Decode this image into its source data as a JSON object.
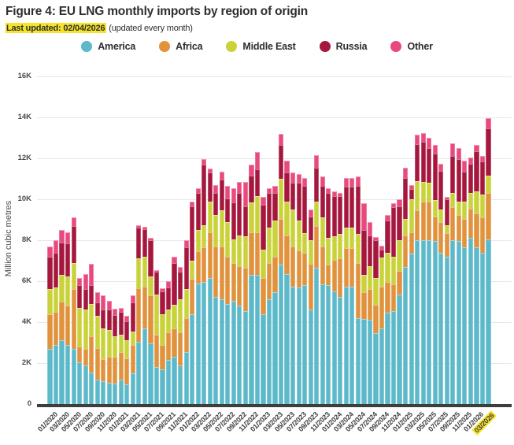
{
  "title": "Figure 4: EU LNG monthly imports by region of origin",
  "subtitle": {
    "highlight": "Last updated: 02/04/2026",
    "rest": " (updated every month)"
  },
  "colors": {
    "america": "#5db9c9",
    "africa": "#e0923c",
    "middle_east": "#c9d339",
    "russia": "#a6173d",
    "other": "#e8497f",
    "highlight_yellow": "#f7e428",
    "grid": "#e7e7e7",
    "axis": "#3d3d3d"
  },
  "legend": {
    "items": [
      {
        "label": "America",
        "color": "#5db9c9"
      },
      {
        "label": "Africa",
        "color": "#e0923c"
      },
      {
        "label": "Middle East",
        "color": "#c9d339"
      },
      {
        "label": "Russia",
        "color": "#a6173d"
      },
      {
        "label": "Other",
        "color": "#e8497f"
      }
    ]
  },
  "y_axis": {
    "title": "Million cubic metres",
    "ticks": [
      "0",
      "2K",
      "4K",
      "6K",
      "8K",
      "10K",
      "12K",
      "14K",
      "16K"
    ],
    "tick_step": 2000
  },
  "x_axis": {
    "label_every_n_months": 2,
    "last_label_highlighted": true
  },
  "chart_data": {
    "type": "bar",
    "subtype": "stacked-vertical",
    "title": "Figure 4: EU LNG monthly imports by region of origin",
    "xlabel": "",
    "ylabel": "Million cubic metres",
    "ylim": [
      0,
      16000
    ],
    "grid": true,
    "legend_position": "top-center",
    "categories": [
      "01/2020",
      "02/2020",
      "03/2020",
      "04/2020",
      "05/2020",
      "06/2020",
      "07/2020",
      "08/2020",
      "09/2020",
      "10/2020",
      "11/2020",
      "12/2020",
      "01/2021",
      "02/2021",
      "03/2021",
      "04/2021",
      "05/2021",
      "06/2021",
      "07/2021",
      "08/2021",
      "09/2021",
      "10/2021",
      "11/2021",
      "12/2021",
      "01/2022",
      "02/2022",
      "03/2022",
      "04/2022",
      "05/2022",
      "06/2022",
      "07/2022",
      "08/2022",
      "09/2022",
      "10/2022",
      "11/2022",
      "12/2022",
      "01/2023",
      "02/2023",
      "03/2023",
      "04/2023",
      "05/2023",
      "06/2023",
      "07/2023",
      "08/2023",
      "09/2023",
      "10/2023",
      "11/2023",
      "12/2023",
      "01/2024",
      "02/2024",
      "03/2024",
      "04/2024",
      "05/2024",
      "06/2024",
      "07/2024",
      "08/2024",
      "09/2024",
      "10/2024",
      "11/2024",
      "12/2024",
      "01/2025",
      "02/2025",
      "03/2025",
      "04/2025",
      "05/2025",
      "06/2025",
      "07/2025",
      "08/2025",
      "09/2025",
      "10/2025",
      "11/2025",
      "12/2025",
      "01/2026",
      "02/2026",
      "03/2026"
    ],
    "series": [
      {
        "name": "America",
        "color": "#5db9c9",
        "values": [
          2700,
          2900,
          3100,
          2900,
          2700,
          2050,
          1900,
          1550,
          1200,
          1100,
          1050,
          1000,
          1200,
          950,
          1500,
          3050,
          3700,
          2950,
          1800,
          1700,
          2150,
          2300,
          1900,
          2550,
          4400,
          5900,
          5950,
          6150,
          5250,
          5100,
          4900,
          5050,
          4800,
          4550,
          6300,
          6300,
          4400,
          5100,
          5450,
          6800,
          6350,
          5750,
          5700,
          5800,
          4600,
          6650,
          5850,
          5800,
          5500,
          5250,
          5750,
          5750,
          4200,
          4150,
          4100,
          3450,
          3700,
          4450,
          4550,
          5350,
          6700,
          7350,
          8000,
          8000,
          8000,
          7950,
          7400,
          7200,
          8000,
          7950,
          7650,
          8100,
          7650,
          7400,
          8050
        ]
      },
      {
        "name": "Africa",
        "color": "#e0923c",
        "values": [
          1700,
          1600,
          1900,
          1900,
          2900,
          750,
          800,
          1750,
          1550,
          1100,
          1250,
          1300,
          1350,
          1300,
          1400,
          2600,
          2050,
          2350,
          1600,
          1200,
          1350,
          1400,
          1600,
          1650,
          1700,
          1550,
          1700,
          2250,
          2450,
          2600,
          2300,
          1850,
          1950,
          2100,
          2100,
          2100,
          1750,
          1800,
          1750,
          2250,
          1900,
          1950,
          1800,
          1600,
          2250,
          2050,
          1850,
          1000,
          1550,
          1850,
          1850,
          1850,
          2700,
          1300,
          1500,
          1400,
          2050,
          1500,
          1300,
          1150,
          1550,
          1050,
          1450,
          1900,
          1900,
          1200,
          1500,
          1150,
          1600,
          1300,
          1400,
          1450,
          1650,
          1700,
          2250
        ]
      },
      {
        "name": "Middle East",
        "color": "#c9d339",
        "values": [
          1200,
          1200,
          1300,
          1450,
          1300,
          1900,
          1900,
          1600,
          1550,
          1500,
          1300,
          1000,
          850,
          850,
          650,
          1450,
          1450,
          950,
          1950,
          1500,
          1100,
          1150,
          1600,
          1400,
          900,
          1050,
          1100,
          1500,
          1550,
          1750,
          1700,
          1150,
          1500,
          1550,
          1450,
          1750,
          1400,
          1700,
          1750,
          1950,
          1650,
          1800,
          1450,
          950,
          1150,
          1200,
          1400,
          1300,
          1150,
          1200,
          1000,
          1000,
          1400,
          850,
          1150,
          1300,
          1400,
          1450,
          1350,
          1500,
          800,
          1600,
          1450,
          950,
          900,
          800,
          600,
          400,
          700,
          650,
          850,
          750,
          1100,
          1150,
          850
        ]
      },
      {
        "name": "Russia",
        "color": "#a6173d",
        "values": [
          1600,
          1700,
          1600,
          1600,
          1800,
          1100,
          1000,
          900,
          650,
          900,
          1000,
          1050,
          1100,
          950,
          1400,
          1500,
          1350,
          1750,
          1100,
          1100,
          1100,
          2050,
          1350,
          2050,
          2650,
          1800,
          2950,
          1400,
          1050,
          1500,
          1150,
          1800,
          2050,
          1450,
          1300,
          1300,
          2200,
          1700,
          1350,
          1650,
          1400,
          1300,
          1850,
          2300,
          1150,
          1650,
          1550,
          2200,
          1950,
          1850,
          2000,
          2000,
          2350,
          2200,
          1500,
          1850,
          400,
          1550,
          2400,
          1650,
          2000,
          500,
          1800,
          1950,
          1700,
          2300,
          1900,
          1250,
          1800,
          2050,
          1450,
          1450,
          1950,
          1600,
          2300
        ]
      },
      {
        "name": "Other",
        "color": "#e8497f",
        "values": [
          500,
          600,
          600,
          550,
          400,
          350,
          750,
          1050,
          500,
          700,
          450,
          300,
          200,
          250,
          350,
          150,
          100,
          100,
          100,
          150,
          300,
          300,
          250,
          350,
          250,
          250,
          250,
          200,
          400,
          400,
          600,
          700,
          550,
          1200,
          550,
          850,
          350,
          250,
          350,
          550,
          600,
          500,
          450,
          400,
          350,
          600,
          450,
          250,
          250,
          150,
          450,
          450,
          450,
          1300,
          650,
          150,
          200,
          300,
          200,
          350,
          500,
          200,
          450,
          450,
          500,
          400,
          350,
          100,
          650,
          550,
          550,
          300,
          300,
          250,
          500
        ]
      }
    ]
  }
}
